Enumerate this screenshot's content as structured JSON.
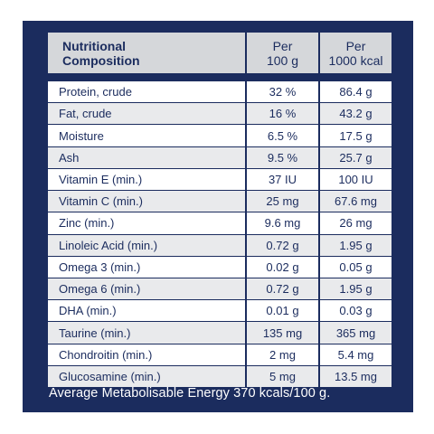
{
  "header": {
    "col1_line1": "Nutritional",
    "col1_line2": "Composition",
    "col2_line1": "Per",
    "col2_line2": "100 g",
    "col3_line1": "Per",
    "col3_line2": "1000 kcal"
  },
  "rows": [
    {
      "name": "Protein, crude",
      "per100g": "32 %",
      "per1000kcal": "86.4 g"
    },
    {
      "name": "Fat, crude",
      "per100g": "16 %",
      "per1000kcal": "43.2 g"
    },
    {
      "name": "Moisture",
      "per100g": "6.5 %",
      "per1000kcal": "17.5 g"
    },
    {
      "name": "Ash",
      "per100g": "9.5 %",
      "per1000kcal": "25.7 g"
    },
    {
      "name": "Vitamin E (min.)",
      "per100g": "37 IU",
      "per1000kcal": "100 IU"
    },
    {
      "name": "Vitamin C (min.)",
      "per100g": "25 mg",
      "per1000kcal": "67.6 mg"
    },
    {
      "name": "Zinc (min.)",
      "per100g": "9.6 mg",
      "per1000kcal": "26 mg"
    },
    {
      "name": "Linoleic Acid (min.)",
      "per100g": "0.72 g",
      "per1000kcal": "1.95 g"
    },
    {
      "name": "Omega 3 (min.)",
      "per100g": "0.02 g",
      "per1000kcal": "0.05 g"
    },
    {
      "name": "Omega 6 (min.)",
      "per100g": "0.72 g",
      "per1000kcal": "1.95 g"
    },
    {
      "name": "DHA (min.)",
      "per100g": "0.01 g",
      "per1000kcal": "0.03 g"
    },
    {
      "name": "Taurine (min.)",
      "per100g": "135 mg",
      "per1000kcal": "365 mg"
    },
    {
      "name": "Chondroitin (min.)",
      "per100g": "2 mg",
      "per1000kcal": "5.4 mg"
    },
    {
      "name": "Glucosamine (min.)",
      "per100g": "5 mg",
      "per1000kcal": "13.5 mg"
    }
  ],
  "footer": "Average Metabolisable Energy 370 kcals/100 g.",
  "colors": {
    "panel": "#1b2c5e",
    "header_bg": "#d5d7da",
    "row_alt": "#e9eaec",
    "row": "#ffffff"
  }
}
